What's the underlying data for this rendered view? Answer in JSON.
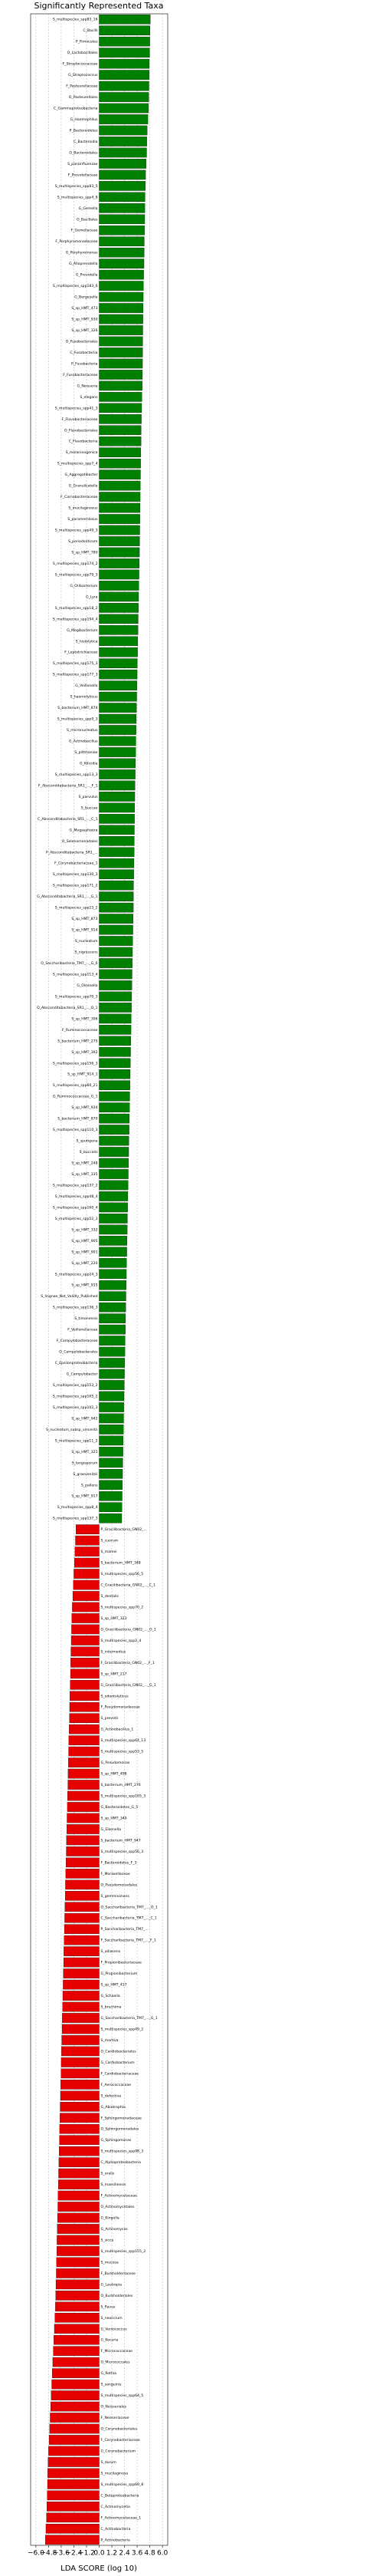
{
  "chart_data": {
    "type": "hbar",
    "title": "Significantly Represented Taxa",
    "xlabel": "LDA SCORE (log 10)",
    "categories": [
      "S_multispecies_spp83_16",
      "C_Bacilli",
      "P_Firmicutes",
      "O_Lactobacillales",
      "F_Streptococcaceae",
      "G_Streptococcus",
      "F_Pasteurellaceae",
      "O_Pasteurellales",
      "C_Gammaproteobacteria",
      "G_Haemophilus",
      "P_Bacteroidetes",
      "C_Bacteroidia",
      "O_Bacteroidales",
      "S_parainfluenzae",
      "F_Prevotellaceae",
      "S_multispecies_spp83_5",
      "S_multispecies_spp4_8",
      "G_Gemella",
      "O_Bacillales",
      "F_Gemellaceae",
      "F_Porphyromonadaceae",
      "G_Porphyromonas",
      "G_Alloprevotella",
      "G_Prevotella",
      "S_multispecies_spp183_6",
      "G_Bergeyella",
      "S_sp_HMT_473",
      "S_sp_HMT_930",
      "S_sp_HMT_326",
      "O_Fusobacteriales",
      "C_Fusobacteriia",
      "P_Fusobacteria",
      "F_Fusobacteriaceae",
      "G_Neisseria",
      "S_elegans",
      "S_multispecies_spp41_3",
      "F_Flavobacteriaceae",
      "O_Flavobacteriales",
      "C_Flavobacteriia",
      "S_melaninogenica",
      "S_multispecies_spp7_4",
      "G_Aggregatibacter",
      "G_Granulicatella",
      "F_Carnobacteriaceae",
      "S_mucilaginosus",
      "S_paramemlosus",
      "S_multispecies_spp49_3",
      "S_periodonticum",
      "S_sp_HMT_780",
      "S_multispecies_spp174_2",
      "S_multispecies_spp79_3",
      "G_Oribacterium",
      "G_Lyra",
      "S_multispecies_spp18_2",
      "S_multispecies_spp194_4",
      "G_Mogibacterium",
      "S_histolytica",
      "F_Leptotrichiaceae",
      "S_multispecies_spp175_3",
      "S_multispecies_spp177_3",
      "G_Veillonella",
      "S_haemolyticus",
      "S_bacterium_HMT_874",
      "S_multispecies_spp9_3",
      "S_micronucleatus",
      "G_Actinobacillus",
      "S_pittmaniae",
      "G_Kilicidia",
      "S_multispecies_spp13_3",
      "F_Absconditabacteria_SR1_..._F_1",
      "S_parvulus",
      "S_buccae",
      "C_Absconditabacteria_SR1_..._C_1",
      "G_Megasphaera",
      "O_Selenomonadales",
      "P_Absconditabacteria_SR1_...",
      "F_Corynebacteriaceae_1",
      "S_multispecies_spp130_3",
      "S_multispecies_spp171_2",
      "G_Absconditabacteria_SR1_..._G_1",
      "S_multispecies_spp23_2",
      "S_sp_HMT_873",
      "S_sp_HMT_914",
      "S_nucleatum",
      "S_nigrescens",
      "O_Saccharibacteria_TM7_..._G_6",
      "S_multispecies_spp113_4",
      "G_Olsenella",
      "S_multispecies_spp70_3",
      "O_Absconditabacteria_SR1_..._O_1",
      "S_sp_HMT_306",
      "F_Ruminococcaceae",
      "S_bacterium_HMT_275",
      "S_sp_HMT_392",
      "S_multispecies_spp156_3",
      "S_sp_HMT_914_1",
      "S_multispecies_spp60_21",
      "G_Ruminococcaceae_G_1",
      "S_sp_HMT_934",
      "S_bacterium_HMT_870",
      "S_multispecies_spp110_3",
      "S_sputigena",
      "S_buccalis",
      "S_sp_HMT_248",
      "S_sp_HMT_335",
      "S_multispecies_spp137_2",
      "S_multispecies_spp48_4",
      "S_multispecies_spp160_4",
      "S_multispecies_spp52_3",
      "S_sp_HMT_332",
      "S_sp_HMT_905",
      "S_sp_HMT_901",
      "S_sp_HMT_220",
      "S_multispecies_spp24_3",
      "S_sp_HMT_915",
      "S_lingnae_Not_Validly_Published",
      "S_multispecies_spp136_3",
      "S_timonensis",
      "F_Veillonellaceae",
      "F_Campylobacteraceae",
      "O_Campylobacterales",
      "C_Epsilonproteobacteria",
      "G_Campylobacter",
      "S_multispecies_spp153_2",
      "S_multispecies_spp165_2",
      "S_multispecies_spp102_3",
      "S_sp_HMT_942",
      "S_nucleatum_subsp_vincentii",
      "S_multispecies_spp11_2",
      "S_sp_HMT_321",
      "S_longisporum",
      "S_graevenitzii",
      "S_pallens",
      "S_sp_HMT_917",
      "S_multispecies_spp8_4",
      "S_multispecies_spp137_3",
      "P_Gracilibacteria_GN02_...",
      "S_cuorum",
      "S_mamei",
      "S_bacterium_HMT_348",
      "S_multispecies_spp56_5",
      "C_Gracilibacteria_GN02_..._C_1",
      "S_dentalis",
      "S_multispecies_spp70_2",
      "S_sp_HMT_323",
      "O_Gracilibacteria_GN02_..._O_1",
      "S_multispecies_spp2_4",
      "S_intermedius",
      "F_Gracilibacteria_GN02_..._F_1",
      "S_sp_HMT_217",
      "G_Gracilibacteria_GN02_..._G_1",
      "S_odontolyticus",
      "F_Pseudomonadaceae",
      "S_prevotii",
      "G_Actinobacillus_1",
      "S_multispecies_spp64_13",
      "S_multispecies_spp53_5",
      "G_Pseudomonas",
      "S_sp_HMT_498",
      "S_bacterium_HMT_276",
      "S_multispecies_spp165_3",
      "G_Bacteroidetes_G_5",
      "S_sp_HMT_349",
      "G_Eikenella",
      "S_bacterium_HMT_947",
      "S_multispecies_spp56_3",
      "F_Bacteroidetes_F_3",
      "F_Moraxellaceae",
      "O_Pseudomonadales",
      "S_gemmisonans",
      "O_Saccharibacteria_TM7_..._O_1",
      "C_Saccharibacteria_TM7_..._C_1",
      "P_Saccharibacteria_TM7_...",
      "F_Saccharibacteria_TM7_..._F_1",
      "S_adiacens",
      "F_Propionibacteriaceae",
      "G_Propionibacterium",
      "S_sp_HMT_417",
      "G_Schaalia",
      "S_bruchima",
      "G_Saccharibacteria_TM7_..._G_1",
      "S_multispecies_spp49_2",
      "S_mortiva",
      "O_Cardiobacteriales",
      "G_Cardiobacterium",
      "F_Cardiobacteriaceae",
      "F_Aerococcaceae",
      "S_defectiva",
      "G_Abiotrophia",
      "F_Sphingomonadaceae",
      "O_Sphingomonadales",
      "G_Sphingomonas",
      "S_multispecies_spp98_3",
      "C_Alphaproteobacteria",
      "S_oralis",
      "S_massiliensis",
      "F_Actinomycetaceae",
      "O_Actinomycetales",
      "G_Kingella",
      "G_Actinomyces",
      "S_sicca",
      "S_multispecies_spp155_2",
      "S_mucosa",
      "F_Burkholderiaceae",
      "G_Lautropia",
      "O_Burkholderiales",
      "S_flavus",
      "S_neoricium",
      "G_Veniococcus",
      "G_Kocuria",
      "F_Micrococcaceae",
      "O_Micrococcales",
      "G_Rothia",
      "S_sanguinis",
      "S_multispecies_spp64_5",
      "O_Neisseriales",
      "F_Neisseriaceae",
      "O_Corynebacteriales",
      "F_Corynebacteriaceae",
      "G_Corynebacterium",
      "S_durum",
      "S_mucilaginosa",
      "S_multispecies_spp69_8",
      "C_Betaproteobacteria",
      "C_Actinomycetia",
      "F_Actinomycetaceae_1",
      "C_Actinobacteria",
      "P_Actinobacteria"
    ],
    "values": [
      4.85,
      4.82,
      4.8,
      4.78,
      4.75,
      4.74,
      4.72,
      4.7,
      4.68,
      4.62,
      4.55,
      4.52,
      4.5,
      4.45,
      4.4,
      4.38,
      4.35,
      4.33,
      4.32,
      4.3,
      4.28,
      4.27,
      4.25,
      4.22,
      4.2,
      4.18,
      4.17,
      4.15,
      4.14,
      4.13,
      4.12,
      4.11,
      4.1,
      4.08,
      4.05,
      4.03,
      4.0,
      3.98,
      3.97,
      3.95,
      3.93,
      3.92,
      3.9,
      3.89,
      3.88,
      3.86,
      3.85,
      3.84,
      3.82,
      3.8,
      3.78,
      3.76,
      3.74,
      3.72,
      3.7,
      3.68,
      3.66,
      3.64,
      3.62,
      3.6,
      3.58,
      3.56,
      3.54,
      3.52,
      3.5,
      3.48,
      3.46,
      3.44,
      3.42,
      3.4,
      3.38,
      3.36,
      3.35,
      3.34,
      3.33,
      3.32,
      3.3,
      3.28,
      3.26,
      3.25,
      3.24,
      3.22,
      3.2,
      3.18,
      3.16,
      3.14,
      3.12,
      3.1,
      3.08,
      3.06,
      3.04,
      3.02,
      3.0,
      2.98,
      2.96,
      2.94,
      2.92,
      2.9,
      2.88,
      2.86,
      2.84,
      2.82,
      2.8,
      2.78,
      2.76,
      2.74,
      2.72,
      2.7,
      2.68,
      2.66,
      2.64,
      2.62,
      2.6,
      2.58,
      2.56,
      2.54,
      2.52,
      2.5,
      2.48,
      2.46,
      2.44,
      2.42,
      2.4,
      2.38,
      2.36,
      2.34,
      2.32,
      2.3,
      2.28,
      2.26,
      2.24,
      2.22,
      2.2,
      2.18,
      2.16,
      2.14,
      -2.2,
      -2.25,
      -2.3,
      -2.35,
      -2.4,
      -2.45,
      -2.5,
      -2.55,
      -2.6,
      -2.62,
      -2.65,
      -2.68,
      -2.7,
      -2.72,
      -2.75,
      -2.78,
      -2.8,
      -2.82,
      -2.85,
      -2.88,
      -2.9,
      -2.92,
      -2.95,
      -2.97,
      -3.0,
      -3.02,
      -3.05,
      -3.07,
      -3.1,
      -3.12,
      -3.15,
      -3.17,
      -3.2,
      -3.22,
      -3.25,
      -3.27,
      -3.3,
      -3.32,
      -3.35,
      -3.37,
      -3.4,
      -3.42,
      -3.45,
      -3.47,
      -3.5,
      -3.52,
      -3.55,
      -3.57,
      -3.6,
      -3.62,
      -3.65,
      -3.67,
      -3.7,
      -3.72,
      -3.75,
      -3.77,
      -3.8,
      -3.82,
      -3.85,
      -3.87,
      -3.9,
      -3.92,
      -3.95,
      -3.97,
      -4.0,
      -4.02,
      -4.05,
      -4.07,
      -4.1,
      -4.12,
      -4.15,
      -4.2,
      -4.25,
      -4.3,
      -4.35,
      -4.4,
      -4.45,
      -4.5,
      -4.55,
      -4.6,
      -4.65,
      -4.7,
      -4.75,
      -4.8,
      -4.85,
      -4.88,
      -4.9,
      -4.93,
      -4.96,
      -5.0,
      -5.05,
      -5.1
    ],
    "positive_color": "#008000",
    "negative_color": "#e60000",
    "xlim": [
      -6.5,
      6.5
    ],
    "xticks": [
      {
        "value": -6.0,
        "label": "−6.0"
      },
      {
        "value": -4.8,
        "label": "−4.8"
      },
      {
        "value": -3.6,
        "label": "−3.6"
      },
      {
        "value": -2.4,
        "label": "−2.4"
      },
      {
        "value": -1.2,
        "label": "−1.2"
      },
      {
        "value": 0,
        "label": "0.0"
      },
      {
        "value": 1.2,
        "label": "1.2"
      },
      {
        "value": 2.4,
        "label": "2.4"
      },
      {
        "value": 3.6,
        "label": "3.6"
      },
      {
        "value": 4.8,
        "label": "4.8"
      },
      {
        "value": 6.0,
        "label": "6.0"
      }
    ],
    "grid": true
  }
}
